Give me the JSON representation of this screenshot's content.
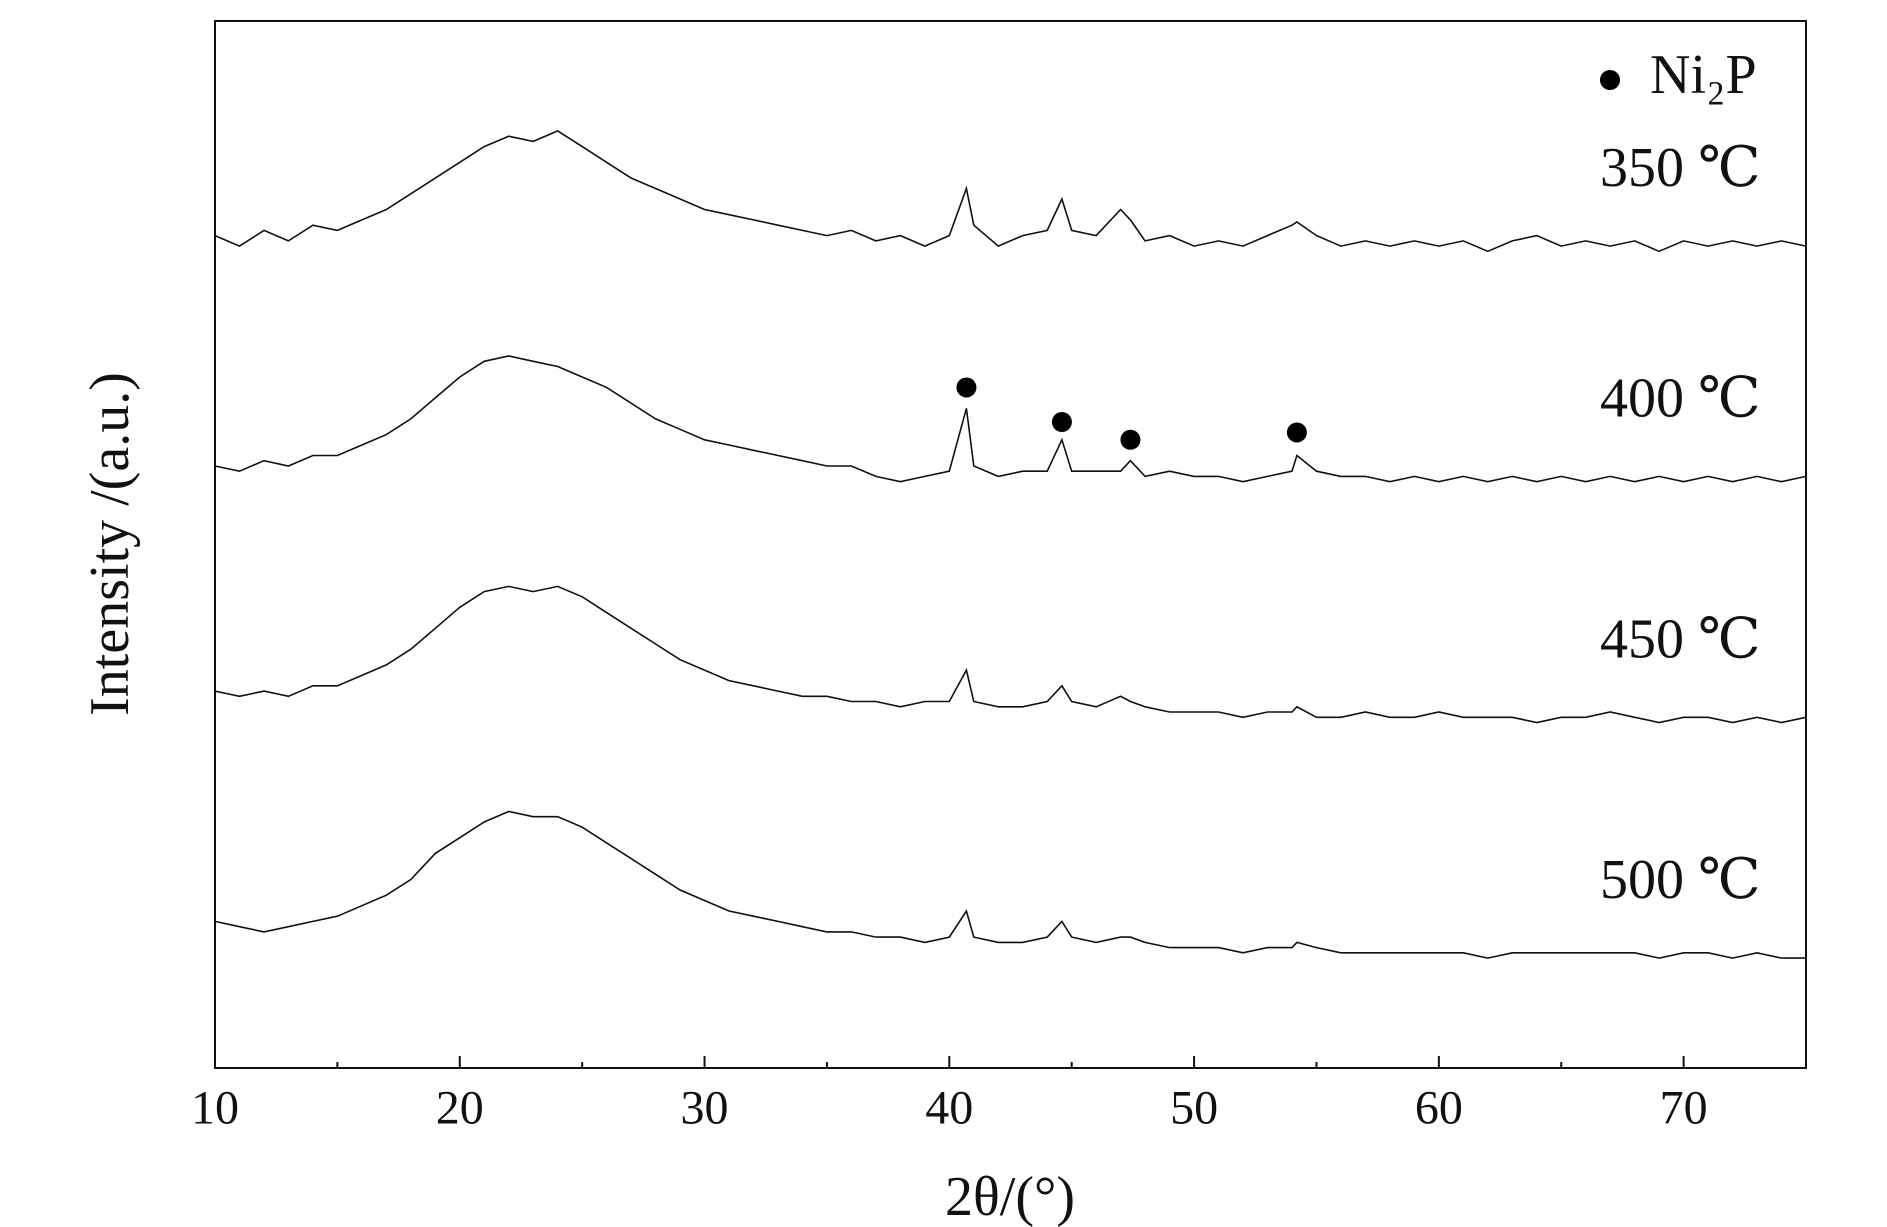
{
  "chart_data": {
    "type": "line",
    "x_label": "2θ/(°)",
    "y_label": "Intensity /(a.u.)",
    "xlim": [
      10,
      75
    ],
    "ylim": [
      0,
      100
    ],
    "xticks": [
      10,
      20,
      30,
      40,
      50,
      60,
      70
    ],
    "minor_xticks": [
      15,
      25,
      35,
      45,
      55,
      65,
      75
    ],
    "x": [
      10,
      11,
      12,
      13,
      14,
      15,
      16,
      17,
      18,
      19,
      20,
      21,
      22,
      23,
      24,
      25,
      26,
      27,
      28,
      29,
      30,
      31,
      32,
      33,
      34,
      35,
      36,
      37,
      38,
      39,
      40,
      40.7,
      41,
      42,
      43,
      44,
      44.6,
      45,
      46,
      47,
      47.4,
      48,
      49,
      50,
      51,
      52,
      53,
      54,
      54.2,
      55,
      56,
      57,
      58,
      59,
      60,
      61,
      62,
      63,
      64,
      65,
      66,
      67,
      68,
      69,
      70,
      71,
      72,
      73,
      74,
      75
    ],
    "series": [
      {
        "name": "350 ℃",
        "color": "#111111",
        "values": [
          79.5,
          78.5,
          80,
          79,
          80.5,
          80,
          81,
          82,
          83.5,
          85,
          86.5,
          88,
          89,
          88.5,
          89.5,
          88,
          86.5,
          85,
          84,
          83,
          82,
          81.5,
          81,
          80.5,
          80,
          79.5,
          80,
          79,
          79.5,
          78.5,
          79.5,
          84,
          80.5,
          78.5,
          79.5,
          80,
          83,
          80,
          79.5,
          82,
          81,
          79,
          79.5,
          78.5,
          79,
          78.5,
          79.5,
          80.5,
          80.8,
          79.5,
          78.5,
          79,
          78.5,
          79,
          78.5,
          79,
          78,
          79,
          79.5,
          78.5,
          79,
          78.5,
          79,
          78,
          79,
          78.5,
          79,
          78.5,
          79,
          78.5
        ]
      },
      {
        "name": "400 ℃",
        "color": "#111111",
        "values": [
          57.5,
          57,
          58,
          57.5,
          58.5,
          58.5,
          59.5,
          60.5,
          62,
          64,
          66,
          67.5,
          68,
          67.5,
          67,
          66,
          65,
          63.5,
          62,
          61,
          60,
          59.5,
          59,
          58.5,
          58,
          57.5,
          57.5,
          56.5,
          56,
          56.5,
          57,
          63,
          57.5,
          56.5,
          57,
          57,
          60,
          57,
          57,
          57,
          58,
          56.5,
          57,
          56.5,
          56.5,
          56,
          56.5,
          57,
          58.5,
          57,
          56.5,
          56.5,
          56,
          56.5,
          56,
          56.5,
          56,
          56.5,
          56,
          56.5,
          56,
          56.5,
          56,
          56.5,
          56,
          56.5,
          56,
          56.5,
          56,
          56.5
        ]
      },
      {
        "name": "450 ℃",
        "color": "#111111",
        "values": [
          36,
          35.5,
          36,
          35.5,
          36.5,
          36.5,
          37.5,
          38.5,
          40,
          42,
          44,
          45.5,
          46,
          45.5,
          46,
          45,
          43.5,
          42,
          40.5,
          39,
          38,
          37,
          36.5,
          36,
          35.5,
          35.5,
          35,
          35,
          34.5,
          35,
          35,
          38,
          35,
          34.5,
          34.5,
          35,
          36.5,
          35,
          34.5,
          35.5,
          35,
          34.5,
          34,
          34,
          34,
          33.5,
          34,
          34,
          34.5,
          33.5,
          33.5,
          34,
          33.5,
          33.5,
          34,
          33.5,
          33.5,
          33.5,
          33,
          33.5,
          33.5,
          34,
          33.5,
          33,
          33.5,
          33.5,
          33,
          33.5,
          33,
          33.5
        ]
      },
      {
        "name": "500 ℃",
        "color": "#111111",
        "values": [
          14,
          13.5,
          13,
          13.5,
          14,
          14.5,
          15.5,
          16.5,
          18,
          20.5,
          22,
          23.5,
          24.5,
          24,
          24,
          23,
          21.5,
          20,
          18.5,
          17,
          16,
          15,
          14.5,
          14,
          13.5,
          13,
          13,
          12.5,
          12.5,
          12,
          12.5,
          15,
          12.5,
          12,
          12,
          12.5,
          14,
          12.5,
          12,
          12.5,
          12.5,
          12,
          11.5,
          11.5,
          11.5,
          11,
          11.5,
          11.5,
          12,
          11.5,
          11,
          11,
          11,
          11,
          11,
          11,
          10.5,
          11,
          11,
          11,
          11,
          11,
          11,
          10.5,
          11,
          11,
          10.5,
          11,
          10.5,
          10.5
        ]
      }
    ],
    "markers": {
      "name": "Ni₂P",
      "color": "#000000",
      "x": [
        40.7,
        44.6,
        47.4,
        54.2
      ],
      "values": [
        65,
        61.7,
        60,
        60.7
      ]
    }
  }
}
